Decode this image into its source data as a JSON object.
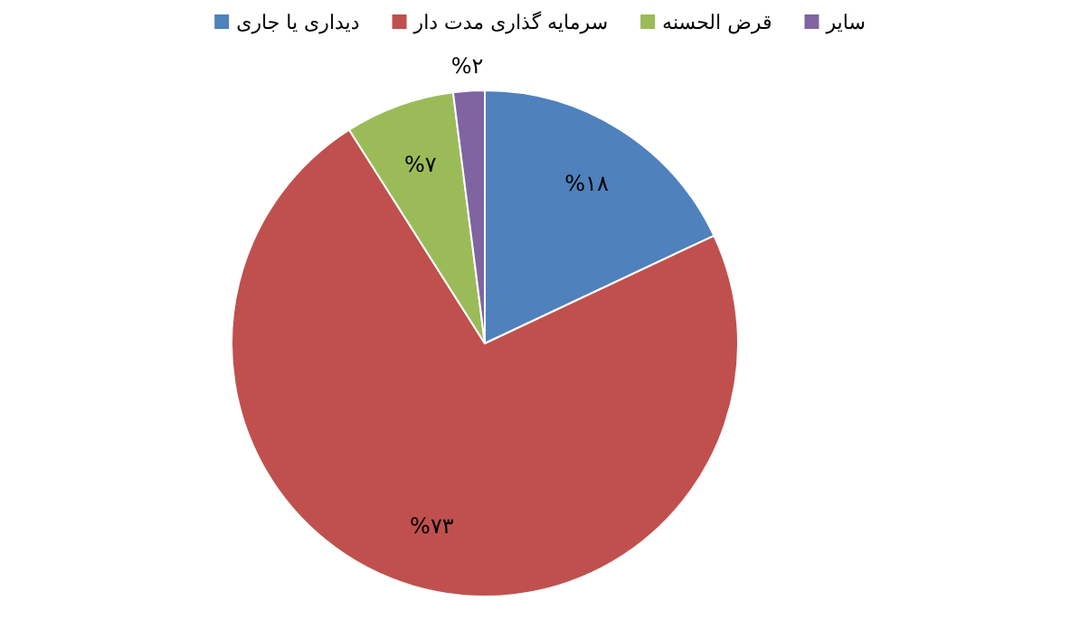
{
  "chart_data": {
    "type": "pie",
    "categories": [
      "دیداری یا جاری",
      "سرمایه گذاری مدت دار",
      "قرض الحسنه",
      "سایر"
    ],
    "values": [
      18,
      73,
      7,
      2
    ],
    "colors": [
      "#4f81bd",
      "#c0504d",
      "#9bbb59",
      "#8064a2"
    ],
    "value_labels": [
      "%۱۸",
      "%۷۳",
      "%۷",
      "%۲"
    ],
    "legend": "top"
  }
}
